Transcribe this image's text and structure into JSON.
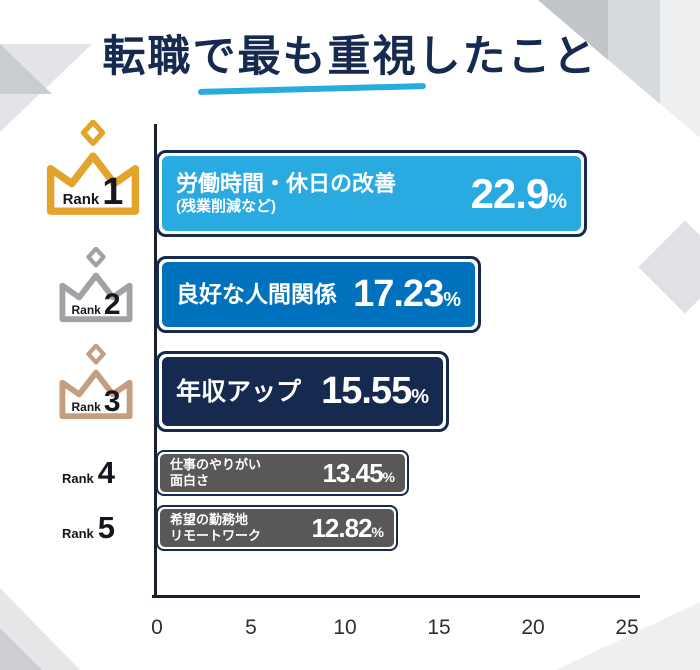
{
  "title": "転職で最も重視したこと",
  "colors": {
    "title_navy": "#16294E",
    "accent_blue": "#29ABE2",
    "rank1_fill": "#29ABE2",
    "rank2_fill": "#0071BC",
    "rank3_fill": "#16294E",
    "rank4_fill": "#595757",
    "rank5_fill": "#595757",
    "bar_border": "#16294E",
    "axis": "#1B2030",
    "crown_gold": "#E2A42B",
    "crown_silver": "#9FA3A7",
    "crown_bronze": "#C49E7F"
  },
  "chart_data": {
    "type": "bar",
    "orientation": "horizontal",
    "title": "転職で最も重視したこと",
    "xlim": [
      0,
      25
    ],
    "x_ticks": [
      "0",
      "5",
      "10",
      "15",
      "20",
      "25"
    ],
    "categories": [
      "労働時間・休日の改善(残業削減など)",
      "良好な人間関係",
      "年収アップ",
      "仕事のやりがい・面白さ",
      "希望の勤務地・リモートワーク"
    ],
    "values": [
      22.9,
      17.23,
      15.55,
      13.45,
      12.82
    ],
    "rows": [
      {
        "rank_word": "Rank",
        "rank_number": "1",
        "crown": "gold",
        "crown_color": "#E2A42B",
        "label_lines": [
          "労働時間・休日の改善",
          "(残業削減など)"
        ],
        "value": 22.9,
        "value_text": "22.9",
        "percent_sign": "%",
        "fill": "#29ABE2"
      },
      {
        "rank_word": "Rank",
        "rank_number": "2",
        "crown": "silver",
        "crown_color": "#9FA3A7",
        "label_lines": [
          "良好な人間関係"
        ],
        "value": 17.23,
        "value_text": "17.23",
        "percent_sign": "%",
        "fill": "#0071BC"
      },
      {
        "rank_word": "Rank",
        "rank_number": "3",
        "crown": "bronze",
        "crown_color": "#C49E7F",
        "label_lines": [
          "年収アップ"
        ],
        "value": 15.55,
        "value_text": "15.55",
        "percent_sign": "%",
        "fill": "#16294E"
      },
      {
        "rank_word": "Rank",
        "rank_number": "4",
        "crown": null,
        "label_lines": [
          "仕事のやりがい",
          "面白さ"
        ],
        "value": 13.45,
        "value_text": "13.45",
        "percent_sign": "%",
        "fill": "#595757"
      },
      {
        "rank_word": "Rank",
        "rank_number": "5",
        "crown": null,
        "label_lines": [
          "希望の勤務地",
          "リモートワーク"
        ],
        "value": 12.82,
        "value_text": "12.82",
        "percent_sign": "%",
        "fill": "#595757"
      }
    ]
  }
}
